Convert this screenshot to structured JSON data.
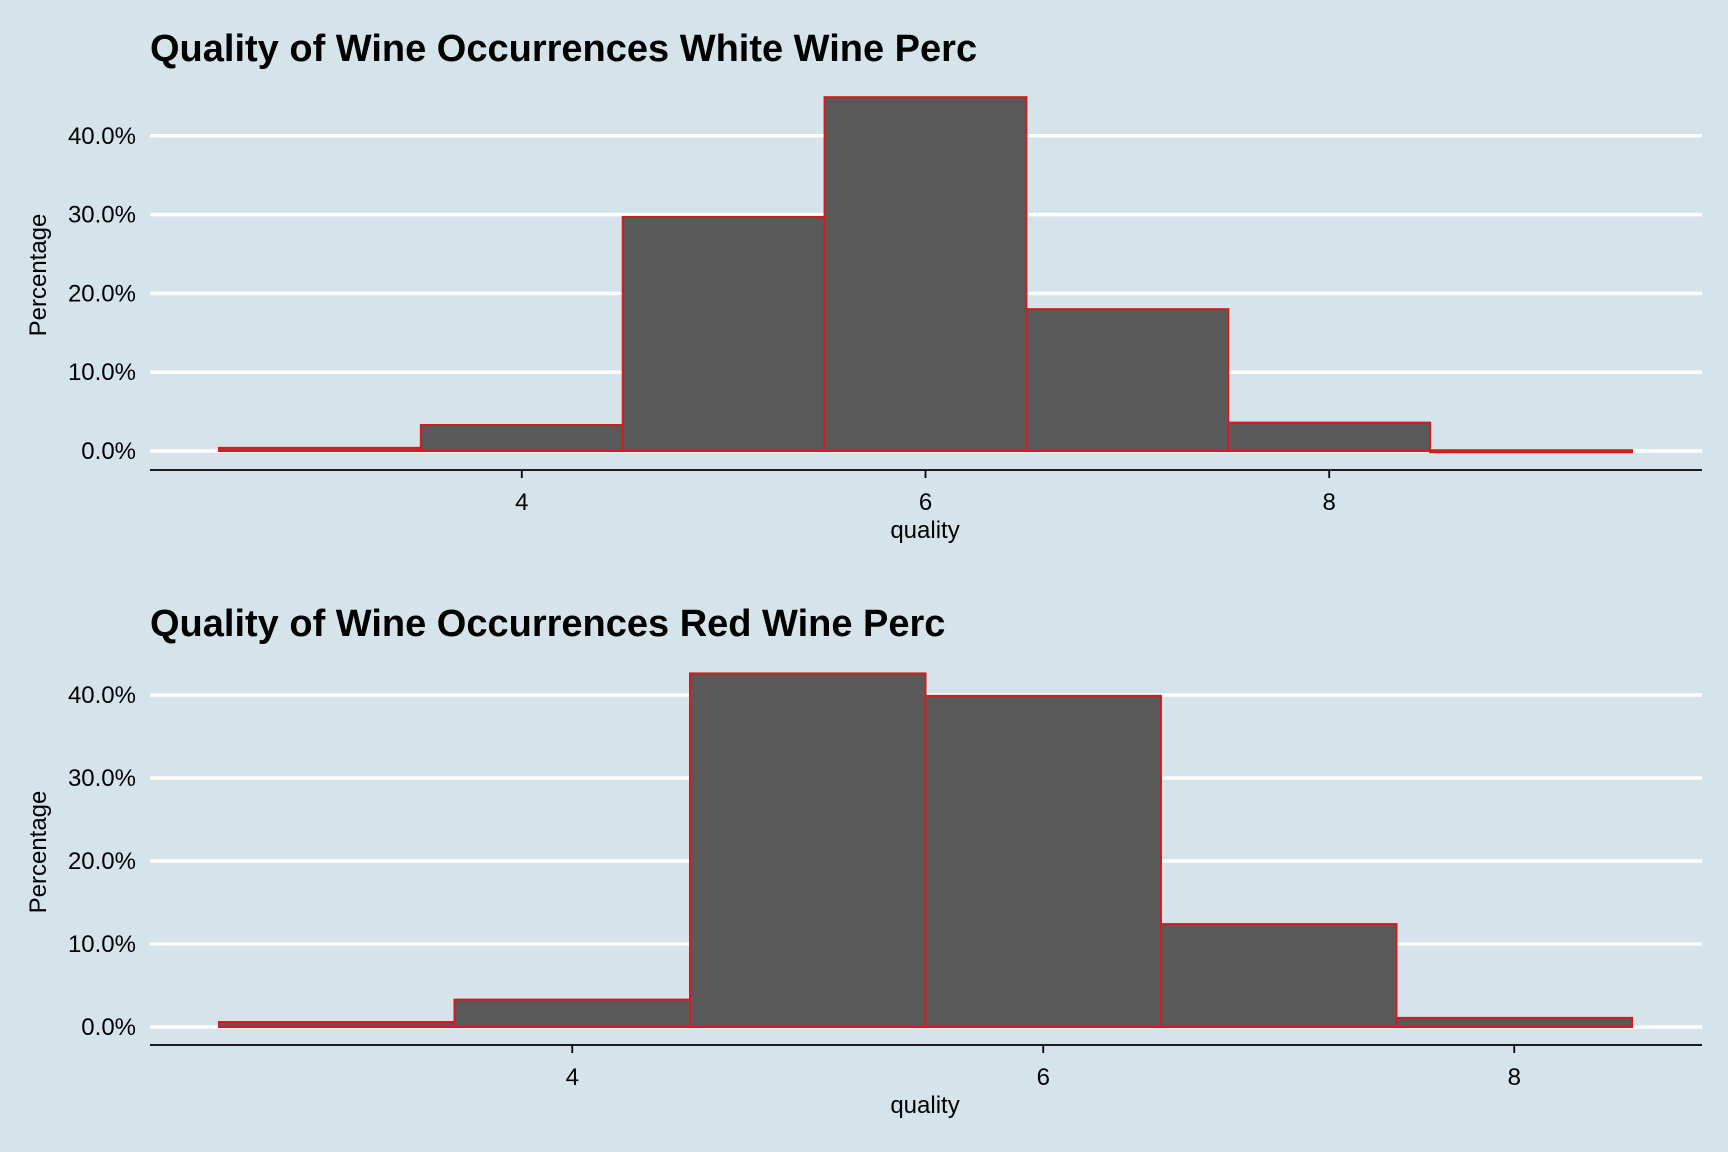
{
  "colors": {
    "background": "#d5e4eb",
    "bar_fill": "#595959",
    "bar_stroke": "#d7191c",
    "gridline": "#ffffff"
  },
  "chart_data": [
    {
      "type": "bar",
      "title": "Quality of Wine Occurrences White Wine Perc",
      "xlabel": "quality",
      "ylabel": "Percentage",
      "categories": [
        3,
        4,
        5,
        6,
        7,
        8,
        9
      ],
      "values": [
        0.4,
        3.3,
        29.7,
        44.9,
        18.0,
        3.6,
        0.1
      ],
      "xlim": [
        2.5,
        9.5
      ],
      "ylim": [
        0,
        45
      ],
      "x_ticks": [
        4,
        6,
        8
      ],
      "x_tick_labels": [
        "4",
        "6",
        "8"
      ],
      "y_ticks": [
        0,
        10,
        20,
        30,
        40
      ],
      "y_tick_labels": [
        "0.0%",
        "10.0%",
        "20.0%",
        "30.0%",
        "40.0%"
      ],
      "grid": "horizontal"
    },
    {
      "type": "bar",
      "title": "Quality of Wine Occurrences Red Wine Perc",
      "xlabel": "quality",
      "ylabel": "Percentage",
      "categories": [
        3,
        4,
        5,
        6,
        7,
        8
      ],
      "values": [
        0.6,
        3.3,
        42.6,
        39.9,
        12.4,
        1.1
      ],
      "xlim": [
        2.5,
        8.5
      ],
      "ylim": [
        0,
        43
      ],
      "x_ticks": [
        4,
        6,
        8
      ],
      "x_tick_labels": [
        "4",
        "6",
        "8"
      ],
      "y_ticks": [
        0,
        10,
        20,
        30,
        40
      ],
      "y_tick_labels": [
        "0.0%",
        "10.0%",
        "20.0%",
        "30.0%",
        "40.0%"
      ],
      "grid": "horizontal"
    }
  ]
}
